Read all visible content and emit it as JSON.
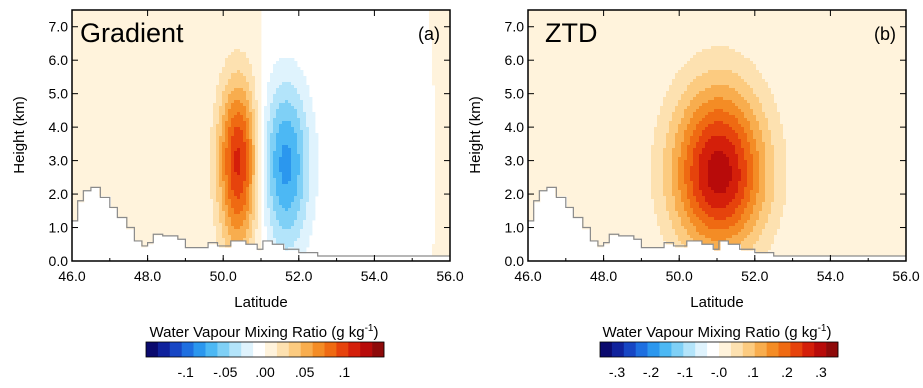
{
  "chart_data": [
    {
      "type": "contour",
      "title": "Gradient",
      "panel_label": "(a)",
      "xlabel": "Latitude",
      "ylabel": "Height (km)",
      "xlim": [
        46.0,
        56.0
      ],
      "ylim": [
        0.0,
        7.5
      ],
      "x_ticks": [
        "46.0",
        "48.0",
        "50.0",
        "52.0",
        "54.0",
        "56.0"
      ],
      "y_ticks": [
        "0.0",
        "1.0",
        "2.0",
        "3.0",
        "4.0",
        "5.0",
        "6.0",
        "7.0"
      ],
      "colorbar": {
        "title": "Water Vapour Mixing Ratio (g kg",
        "title_sup": "-1",
        "title_end": ")",
        "range": [
          -0.15,
          0.15
        ],
        "tick_values": [
          -0.1,
          -0.05,
          0.0,
          0.05,
          0.1
        ],
        "tick_labels": [
          "-.1",
          "-.05",
          ".00",
          ".05",
          ".1"
        ]
      },
      "features": [
        {
          "sign": "positive",
          "center_lat": 50.4,
          "center_height": 3.0,
          "peak": 0.11,
          "lat_halfwidth": 0.6,
          "top_height": 7.0
        },
        {
          "sign": "negative",
          "center_lat": 51.65,
          "center_height": 2.9,
          "peak": -0.08,
          "lat_halfwidth": 0.75,
          "top_height": 7.1
        }
      ]
    },
    {
      "type": "contour",
      "title": "ZTD",
      "panel_label": "(b)",
      "xlabel": "Latitude",
      "ylabel": "Height (km)",
      "xlim": [
        46.0,
        56.0
      ],
      "ylim": [
        0.0,
        7.5
      ],
      "x_ticks": [
        "46.0",
        "48.0",
        "50.0",
        "52.0",
        "54.0",
        "56.0"
      ],
      "y_ticks": [
        "0.0",
        "1.0",
        "2.0",
        "3.0",
        "4.0",
        "5.0",
        "6.0",
        "7.0"
      ],
      "colorbar": {
        "title": "Water Vapour Mixing Ratio (g kg",
        "title_sup": "-1",
        "title_end": ")",
        "range": [
          -0.35,
          0.35
        ],
        "tick_values": [
          -0.3,
          -0.2,
          -0.1,
          0.0,
          0.1,
          0.2,
          0.3
        ],
        "tick_labels": [
          "-.3",
          "-.2",
          "-.1",
          "-.0",
          ".1",
          ".2",
          ".3"
        ]
      },
      "features": [
        {
          "sign": "positive",
          "center_lat": 51.05,
          "center_height": 2.6,
          "peak": 0.3,
          "lat_halfwidth": 1.4,
          "top_height": 7.0
        }
      ]
    }
  ],
  "terrain": {
    "latitudes": [
      46.0,
      46.15,
      46.3,
      46.5,
      46.75,
      47.0,
      47.2,
      47.45,
      47.65,
      47.85,
      48.0,
      48.15,
      48.4,
      48.8,
      49.0,
      49.4,
      49.6,
      49.85,
      50.2,
      50.6,
      50.9,
      51.05,
      51.3,
      51.6,
      52.0,
      52.5,
      53.0,
      56.0
    ],
    "heights_km": [
      1.2,
      1.8,
      2.1,
      2.2,
      1.9,
      1.6,
      1.3,
      1.0,
      0.6,
      0.45,
      0.55,
      0.8,
      0.75,
      0.65,
      0.4,
      0.4,
      0.55,
      0.45,
      0.6,
      0.5,
      0.35,
      0.6,
      0.5,
      0.35,
      0.25,
      0.15,
      0.15,
      0.15
    ]
  },
  "colormap": [
    "#0b0a6e",
    "#10229c",
    "#1746c4",
    "#1e6fe0",
    "#2b97ee",
    "#4cb8f4",
    "#7fd0f6",
    "#b3e4fa",
    "#dff3fd",
    "#ffffff",
    "#fff3dc",
    "#fde1b0",
    "#fccb80",
    "#f8ad4e",
    "#f48c25",
    "#ef6a12",
    "#e6430c",
    "#d41f0a",
    "#b80b0a",
    "#8e0a0a"
  ]
}
